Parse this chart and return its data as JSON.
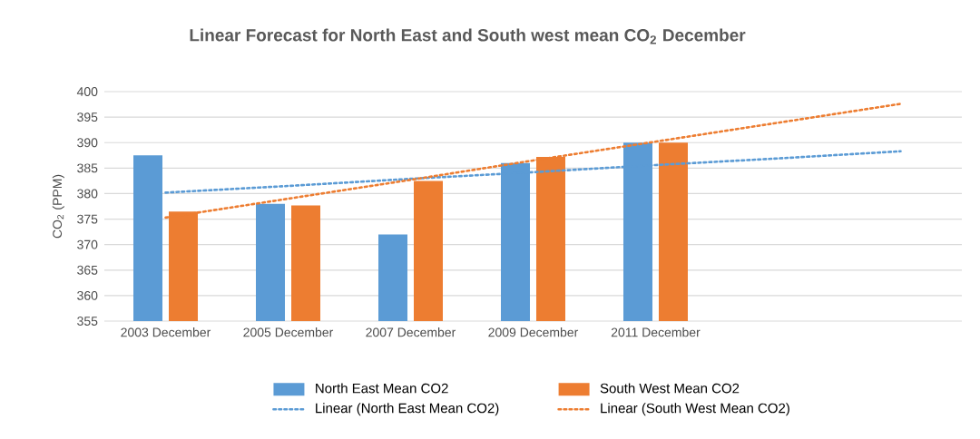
{
  "chart_data": {
    "type": "bar",
    "title": "Linear Forecast for North East and South west mean CO$_{2}$  December",
    "ylabel": "CO$_{2}$ (PPM)",
    "categories": [
      "2003  December",
      "2005  December",
      "2007  December",
      "2009  December",
      "2011 December",
      null,
      null
    ],
    "series": [
      {
        "name": "North East Mean CO2",
        "color": "#5b9bd5",
        "values": [
          387.5,
          378,
          372,
          386,
          390,
          null,
          null
        ]
      },
      {
        "name": "South West Mean CO2",
        "color": "#ed7d31",
        "values": [
          376.5,
          377.7,
          382.5,
          387.2,
          390,
          null,
          null
        ]
      },
      {
        "name": "Linear (North East Mean CO2)",
        "type": "line",
        "line_style": "dotted",
        "color": "#5b9bd5",
        "values": [
          380.2,
          381.5,
          382.9,
          384.2,
          385.6,
          386.9,
          388.3
        ]
      },
      {
        "name": "Linear (South West Mean CO2)",
        "type": "line",
        "line_style": "dotted",
        "color": "#ed7d31",
        "values": [
          375.3,
          379.0,
          382.7,
          386.5,
          390.2,
          393.9,
          397.6
        ]
      }
    ],
    "ylim": [
      355,
      400
    ],
    "yticks": [
      355,
      360,
      365,
      370,
      375,
      380,
      385,
      390,
      395,
      400
    ],
    "grid": "y",
    "legend": "bottom"
  }
}
